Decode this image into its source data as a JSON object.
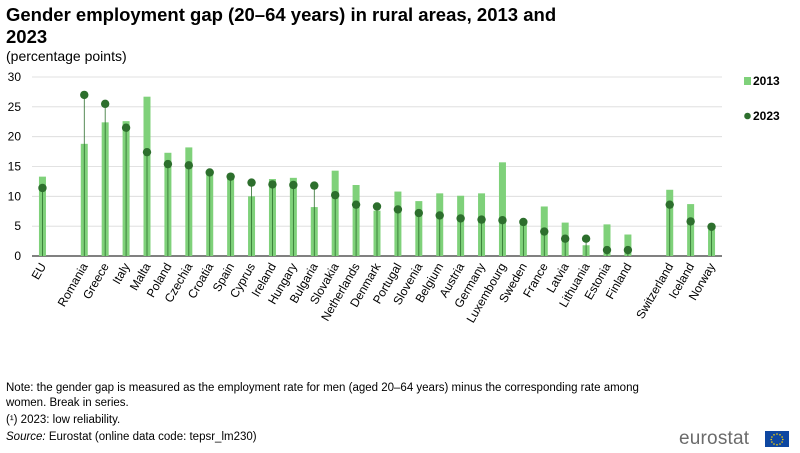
{
  "title": "Gender employment gap (20–64 years) in rural areas, 2013 and 2023",
  "subtitle": "(percentage points)",
  "chart_data": {
    "type": "bar",
    "title": "Gender employment gap (20–64 years) in rural areas, 2013 and 2023",
    "subtitle": "(percentage points)",
    "ylim": [
      0,
      30
    ],
    "yticks": [
      0,
      5,
      10,
      15,
      20,
      25,
      30
    ],
    "grid": true,
    "legend_position": "right",
    "categories": [
      "EU",
      "Romania",
      "Greece",
      "Italy",
      "Malta",
      "Poland",
      "Czechia",
      "Croatia",
      "Spain",
      "Cyprus",
      "Ireland",
      "Hungary",
      "Bulgaria",
      "Slovakia",
      "Netherlands",
      "Denmark",
      "Portugal",
      "Slovenia",
      "Belgium",
      "Austria",
      "Germany",
      "Luxembourg",
      "Sweden",
      "France",
      "Latvia",
      "Lithuania",
      "Estonia",
      "Finland",
      "Switzerland",
      "Iceland",
      "Norway"
    ],
    "series": [
      {
        "name": "2013",
        "mark": "bar",
        "color": "#7fd17a",
        "values": [
          13.3,
          18.8,
          22.4,
          22.6,
          26.7,
          17.3,
          18.2,
          14.0,
          13.3,
          10.0,
          12.9,
          13.1,
          8.2,
          14.3,
          11.9,
          7.6,
          10.8,
          9.2,
          10.5,
          10.1,
          10.5,
          15.7,
          5.3,
          8.3,
          5.6,
          1.8,
          5.3,
          3.6,
          11.1,
          8.7,
          4.4
        ]
      },
      {
        "name": "2023",
        "mark": "dot",
        "color": "#2d6f2d",
        "values": [
          11.4,
          27.0,
          25.5,
          21.5,
          17.4,
          15.4,
          15.2,
          14.0,
          13.3,
          12.3,
          12.0,
          11.9,
          11.8,
          10.2,
          8.6,
          8.3,
          7.8,
          7.2,
          6.8,
          6.3,
          6.1,
          6.0,
          5.7,
          4.1,
          2.9,
          2.9,
          1.0,
          1.0,
          8.6,
          5.8,
          4.9
        ]
      }
    ],
    "slot_index": [
      0,
      2,
      3,
      4,
      5,
      6,
      7,
      8,
      9,
      10,
      11,
      12,
      13,
      14,
      15,
      16,
      17,
      18,
      19,
      20,
      21,
      22,
      23,
      24,
      25,
      26,
      27,
      28,
      30,
      31,
      32
    ]
  },
  "notes": {
    "note": "Note: the gender gap is measured as the employment rate for men (aged 20–64 years) minus the corresponding rate among women. Break in series.",
    "reliability": "(¹) 2023: low reliability.",
    "source_label": "Source:",
    "source_text": " Eurostat (online data code: tepsr_lm230)"
  },
  "logo": {
    "text": "eurostat"
  }
}
